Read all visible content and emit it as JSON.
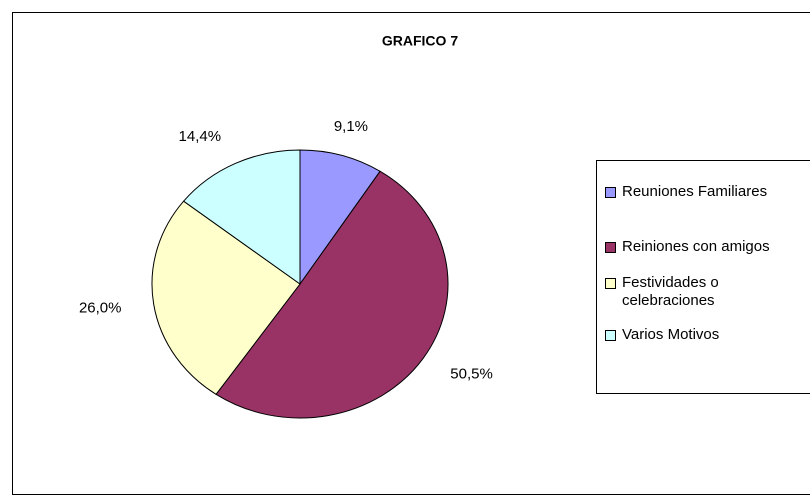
{
  "chart_data": {
    "type": "pie",
    "title": "GRAFICO 7",
    "categories": [
      "Reuniones Familiares",
      "Reiniones con amigos",
      "Festividades o celebraciones",
      "Varios Motivos"
    ],
    "values": [
      9.1,
      50.5,
      26.0,
      14.4
    ],
    "value_labels": [
      "9,1%",
      "50,5%",
      "26,0%",
      "14,4%"
    ],
    "colors": [
      "#9999ff",
      "#993366",
      "#ffffcc",
      "#ccffff"
    ],
    "legend": "right"
  }
}
